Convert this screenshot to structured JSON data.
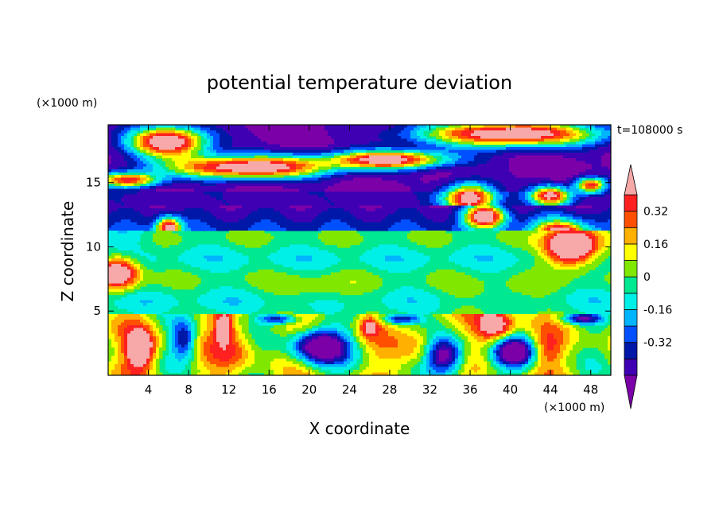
{
  "chart_data": {
    "type": "heatmap",
    "title": "potential temperature deviation",
    "xlabel": "X coordinate",
    "ylabel": "Z coordinate",
    "x_unit": "(×1000 m)",
    "y_unit": "(×1000 m)",
    "time_label": "t=108000 s",
    "xlim": [
      0,
      50
    ],
    "ylim": [
      0,
      19.5
    ],
    "x_ticks": [
      4,
      8,
      12,
      16,
      20,
      24,
      28,
      32,
      36,
      40,
      44,
      48
    ],
    "y_ticks": [
      5,
      10,
      15
    ],
    "colorbar": {
      "levels": [
        -0.48,
        -0.4,
        -0.32,
        -0.24,
        -0.16,
        -0.08,
        0,
        0.08,
        0.16,
        0.24,
        0.32,
        0.4
      ],
      "labels": [
        "0.32",
        "0.16",
        "0",
        "-0.16",
        "-0.32"
      ],
      "label_values": [
        0.32,
        0.16,
        0,
        -0.16,
        -0.32
      ],
      "colors": [
        "#7b00a8",
        "#3f00b4",
        "#0018a8",
        "#0050ff",
        "#00b4ff",
        "#00f0e8",
        "#00e890",
        "#80e800",
        "#ffff00",
        "#ffb000",
        "#ff5000",
        "#ff2020",
        "#f7a8a8"
      ],
      "extend": "both"
    }
  }
}
